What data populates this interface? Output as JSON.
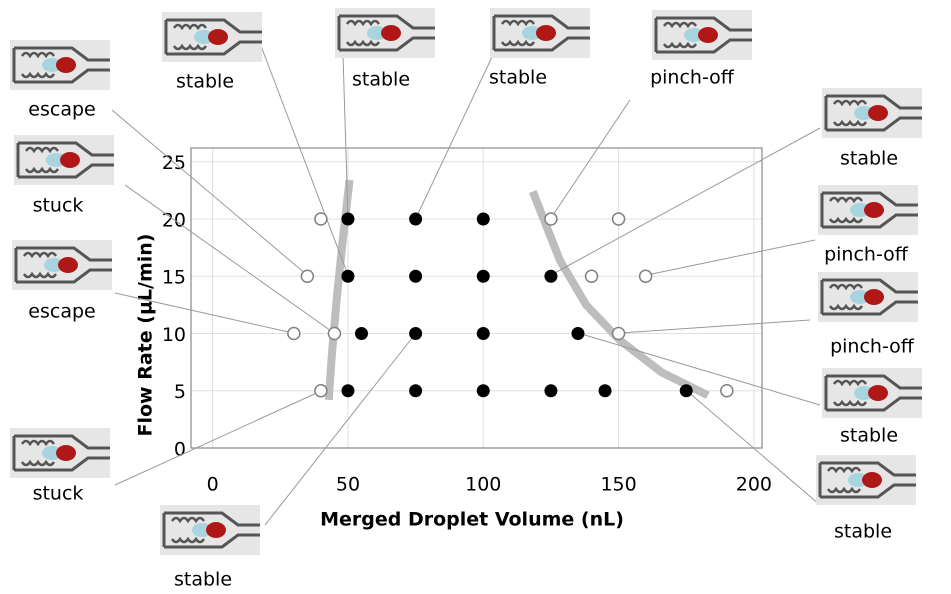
{
  "chart_data": {
    "type": "scatter",
    "x_label": "Merged Droplet Volume (nL)",
    "y_label": "Flow Rate (µL/min)",
    "xlim": [
      -8,
      203
    ],
    "ylim": [
      0,
      26.2
    ],
    "xticks": [
      0,
      50,
      100,
      150,
      200
    ],
    "yticks": [
      0,
      5,
      10,
      15,
      20,
      25
    ],
    "grid": true,
    "series": [
      {
        "marker": "open",
        "color": "#808080",
        "x": [
          40,
          125,
          150,
          35,
          140,
          160,
          30,
          45,
          150,
          40,
          190
        ],
        "y": [
          20,
          20,
          20,
          15,
          15,
          15,
          10,
          10,
          10,
          5,
          5
        ]
      },
      {
        "marker": "filled",
        "color": "#000000",
        "x": [
          50,
          75,
          100,
          50,
          75,
          100,
          125,
          55,
          75,
          100,
          135,
          50,
          75,
          100,
          125,
          145,
          175
        ],
        "y": [
          20,
          20,
          20,
          15,
          15,
          15,
          15,
          10,
          10,
          10,
          10,
          5,
          5,
          5,
          5,
          5,
          5
        ]
      }
    ],
    "boundaries": [
      {
        "color": "#bdbdbd",
        "x": [
          50.6,
          48,
          45.8,
          44,
          42.9
        ],
        "y": [
          23.4,
          18,
          12.9,
          8,
          4.2
        ]
      },
      {
        "color": "#bdbdbd",
        "x": [
          118.3,
          128.3,
          138,
          150.5,
          166,
          183
        ],
        "y": [
          22.4,
          16.4,
          12.5,
          9.4,
          6.6,
          4.6
        ]
      }
    ],
    "annotations": [
      "escape",
      "stable",
      "stable",
      "stable",
      "pinch-off",
      "stuck",
      "escape",
      "stuck",
      "stable",
      "stable",
      "pinch-off",
      "pinch-off",
      "stable",
      "stable"
    ]
  }
}
